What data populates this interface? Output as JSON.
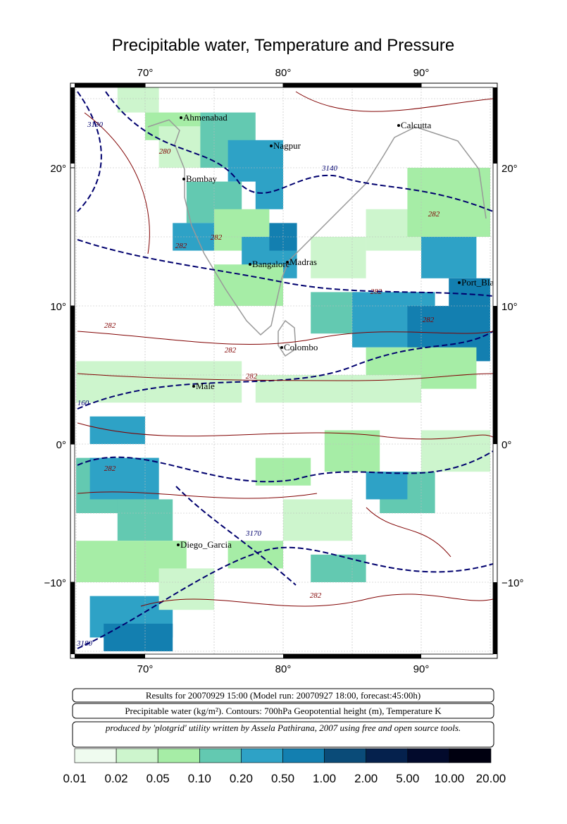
{
  "title": "Precipitable water, Temperature and Pressure",
  "map": {
    "lon_ticks": [
      {
        "value": 70,
        "label": "70°"
      },
      {
        "value": 80,
        "label": "80°"
      },
      {
        "value": 90,
        "label": "90°"
      }
    ],
    "lat_ticks": [
      {
        "value": 20,
        "label": "20°"
      },
      {
        "value": 10,
        "label": "10°"
      },
      {
        "value": 0,
        "label": "0°"
      },
      {
        "value": -10,
        "label": "−10°"
      }
    ],
    "cities": [
      "Ahmenabad",
      "Nagpur",
      "Calcutta",
      "Bombay",
      "Bangalore",
      "Madras",
      "Port_Blair",
      "Colombo",
      "Male",
      "Diego_Garcia"
    ],
    "contour_labels": [
      "3130",
      "280",
      "3140",
      "282",
      "282",
      "282",
      "282",
      "282",
      "282",
      "282",
      "282",
      "160",
      "282",
      "3170",
      "282",
      "3180"
    ]
  },
  "info": {
    "results": "Results for 20070929 15:00 (Model run: 20070927 18:00, forecast:45:00h)",
    "legend": "Precipitable water (kg/m²).  Contours: 700hPa Geopotential height (m), Temperature K",
    "credit": "produced by 'plotgrid' utility written by Assela Pathirana, 2007 using free and open source tools."
  },
  "colorbar": {
    "labels": [
      "0.01",
      "0.02",
      "0.05",
      "0.10",
      "0.20",
      "0.50",
      "1.00",
      "2.00",
      "5.00",
      "10.00",
      "20.00"
    ],
    "colors": [
      "#effbef",
      "#cdf5cd",
      "#a6eda6",
      "#63c9b1",
      "#2ea2c6",
      "#137fb0",
      "#0a4b78",
      "#05214d",
      "#020a2c",
      "#000010"
    ]
  }
}
